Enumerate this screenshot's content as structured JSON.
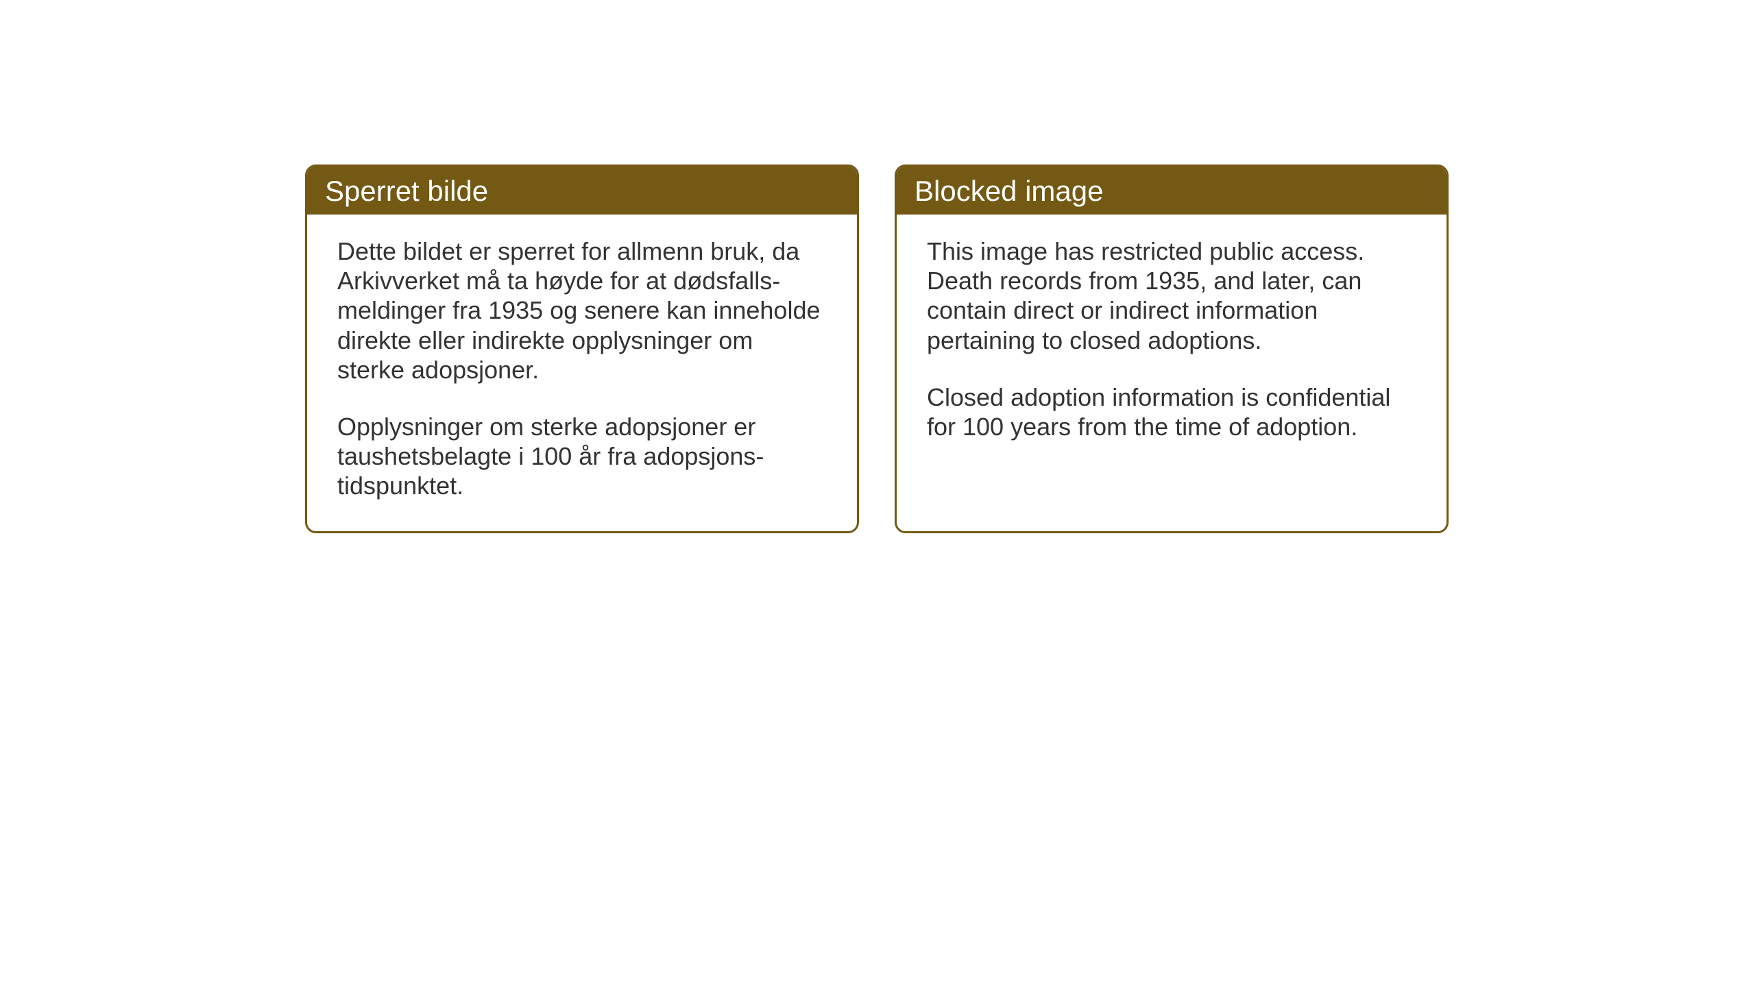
{
  "cards": {
    "norwegian": {
      "title": "Sperret bilde",
      "paragraph1": "Dette bildet er sperret for allmenn bruk, da Arkivverket må ta høyde for at dødsfalls-meldinger fra 1935 og senere kan inneholde direkte eller indirekte opplysninger om sterke adopsjoner.",
      "paragraph2": "Opplysninger om sterke adopsjoner er taushetsbelagte i 100 år fra adopsjons-tidspunktet."
    },
    "english": {
      "title": "Blocked image",
      "paragraph1": "This image has restricted public access. Death records from 1935, and later, can contain direct or indirect information pertaining to closed adoptions.",
      "paragraph2": "Closed adoption information is confidential for 100 years from the time of adoption."
    }
  },
  "styling": {
    "header_bg_color": "#735913",
    "header_text_color": "#ffffff",
    "border_color": "#735913",
    "body_text_color": "#333333",
    "page_bg_color": "#ffffff",
    "header_fontsize": 42,
    "body_fontsize": 36,
    "border_radius": 16,
    "border_width": 3
  }
}
